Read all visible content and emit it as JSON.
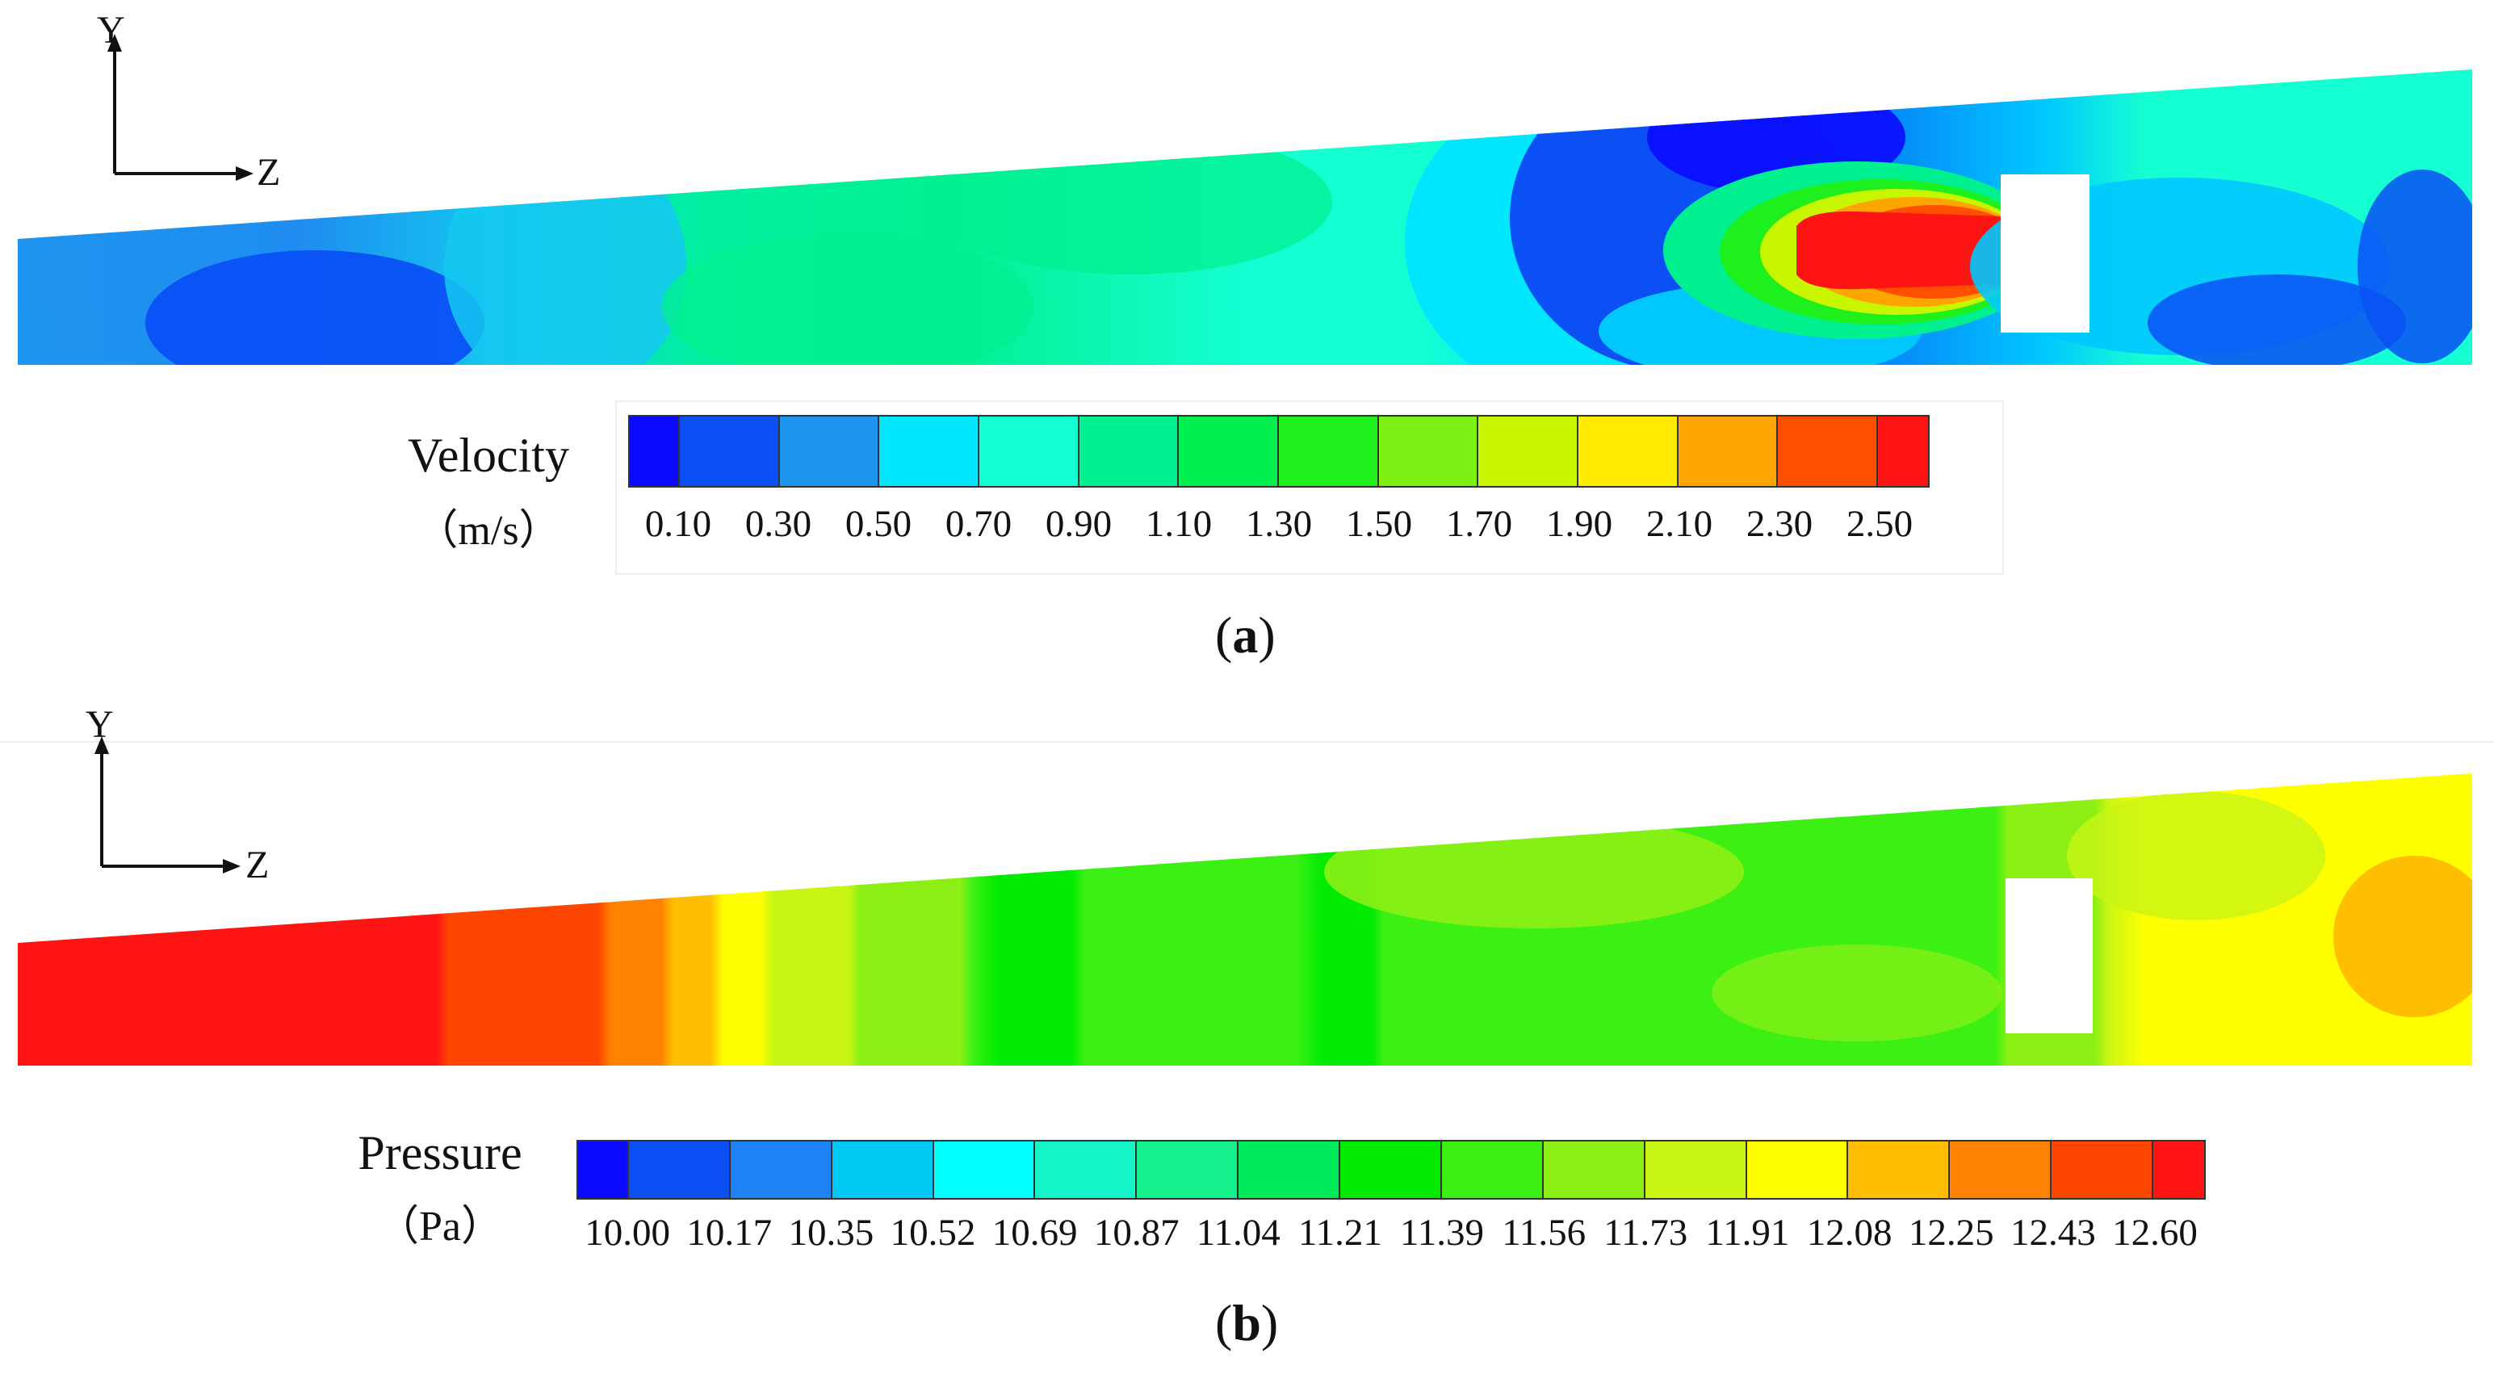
{
  "panel_a": {
    "label": "a",
    "axis_y": "Y",
    "axis_z": "Z",
    "legend": {
      "title": "Velocity",
      "unit": "（m/s）",
      "ticks": [
        "0.10",
        "0.30",
        "0.50",
        "0.70",
        "0.90",
        "1.10",
        "1.30",
        "1.50",
        "1.70",
        "1.90",
        "2.10",
        "2.30",
        "2.50"
      ],
      "colors": [
        "#0a0aff",
        "#0a50f5",
        "#1e96f0",
        "#00e6ff",
        "#14ffd2",
        "#00f090",
        "#00f050",
        "#1ef01e",
        "#7df014",
        "#c8f500",
        "#ffeb00",
        "#ffa500",
        "#ff5000",
        "#ff1414"
      ]
    }
  },
  "panel_b": {
    "label": "b",
    "axis_y": "Y",
    "axis_z": "Z",
    "legend": {
      "title": "Pressure",
      "unit": "（Pa）",
      "ticks": [
        "10.00",
        "10.17",
        "10.35",
        "10.52",
        "10.69",
        "10.87",
        "11.04",
        "11.21",
        "11.39",
        "11.56",
        "11.73",
        "11.91",
        "12.08",
        "12.25",
        "12.43",
        "12.60"
      ],
      "colors": [
        "#0a0aff",
        "#0a50f5",
        "#1e82f5",
        "#00c8f5",
        "#00ffff",
        "#14f5c8",
        "#14f08c",
        "#00eb5a",
        "#00eb00",
        "#3cf014",
        "#8cf014",
        "#c8f514",
        "#ffff00",
        "#ffbe00",
        "#ff8200",
        "#ff4600",
        "#ff1414"
      ]
    }
  }
}
